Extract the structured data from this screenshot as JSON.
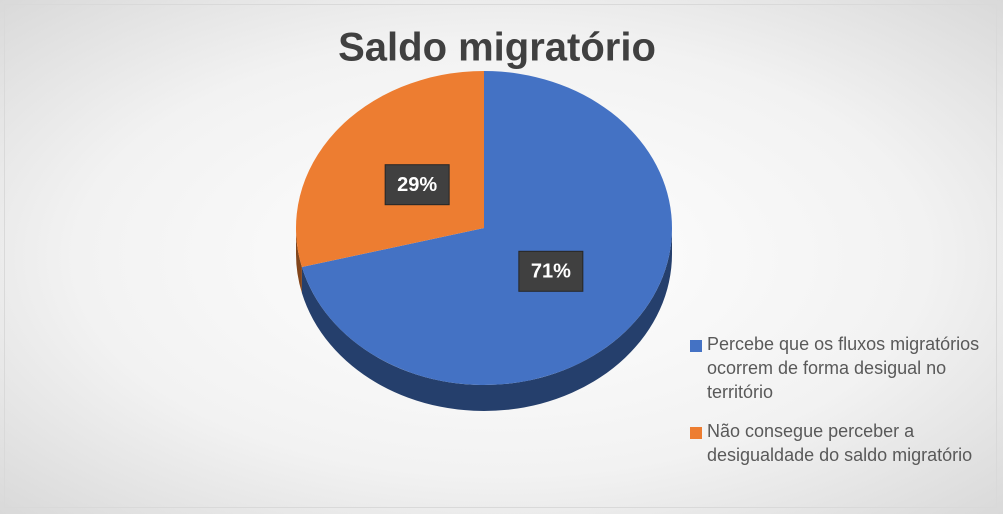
{
  "chart_data": {
    "type": "pie",
    "title": "Saldo migratório",
    "categories": [
      "Percebe que os fluxos migratórios ocorrem de forma desigual no território",
      "Não consegue perceber a desigualdade do saldo migratório"
    ],
    "values": [
      71,
      29
    ],
    "value_labels": [
      "71%",
      "29%"
    ],
    "colors": [
      "#4472c4",
      "#ed7d31"
    ],
    "legend": "right"
  }
}
